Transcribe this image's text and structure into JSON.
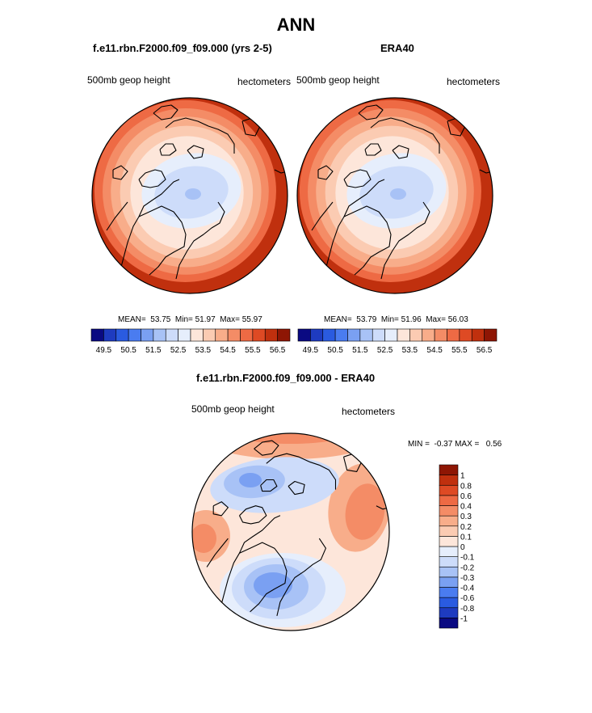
{
  "title": "ANN",
  "chart_data": [
    {
      "type": "heatmap",
      "projection": "north polar stereographic",
      "title": "f.e11.rbn.F2000.f09_f09.000 (yrs 2-5)",
      "left_label": "500mb geop height",
      "right_label": "hectometers",
      "stats": {
        "mean_label": "MEAN=",
        "mean": "53.75",
        "min_label": "Min=",
        "min": "51.97",
        "max_label": "Max=",
        "max": "55.97"
      },
      "colorbar": {
        "orientation": "horizontal",
        "levels": [
          49.5,
          50,
          50.5,
          51,
          51.5,
          52,
          52.5,
          53,
          53.5,
          54,
          54.5,
          55,
          55.5,
          56,
          56.5
        ],
        "tick_labels": [
          "49.5",
          "50.5",
          "51.5",
          "52.5",
          "53.5",
          "54.5",
          "55.5",
          "56.5"
        ],
        "colors": [
          "#0a0a82",
          "#1e3bc0",
          "#2a5be0",
          "#4a7cf0",
          "#7aa0f2",
          "#a8c2f6",
          "#cddcfa",
          "#e6eefc",
          "#fde6da",
          "#fbcbb2",
          "#f8ad8a",
          "#f48c66",
          "#ee6a44",
          "#de4a24",
          "#c0300e",
          "#8e1604"
        ]
      }
    },
    {
      "type": "heatmap",
      "projection": "north polar stereographic",
      "title": "ERA40",
      "left_label": "500mb geop height",
      "right_label": "hectometers",
      "stats": {
        "mean_label": "MEAN=",
        "mean": "53.79",
        "min_label": "Min=",
        "min": "51.96",
        "max_label": "Max=",
        "max": "56.03"
      },
      "colorbar": {
        "orientation": "horizontal",
        "levels": [
          49.5,
          50,
          50.5,
          51,
          51.5,
          52,
          52.5,
          53,
          53.5,
          54,
          54.5,
          55,
          55.5,
          56,
          56.5
        ],
        "tick_labels": [
          "49.5",
          "50.5",
          "51.5",
          "52.5",
          "53.5",
          "54.5",
          "55.5",
          "56.5"
        ],
        "colors": [
          "#0a0a82",
          "#1e3bc0",
          "#2a5be0",
          "#4a7cf0",
          "#7aa0f2",
          "#a8c2f6",
          "#cddcfa",
          "#e6eefc",
          "#fde6da",
          "#fbcbb2",
          "#f8ad8a",
          "#f48c66",
          "#ee6a44",
          "#de4a24",
          "#c0300e",
          "#8e1604"
        ]
      }
    },
    {
      "type": "heatmap",
      "projection": "north polar stereographic",
      "title": "f.e11.rbn.F2000.f09_f09.000 - ERA40",
      "left_label": "500mb geop height",
      "right_label": "hectometers",
      "stats": {
        "min_label": "MIN =",
        "min": "-0.37",
        "max_label": "MAX =",
        "max": "0.56"
      },
      "colorbar": {
        "orientation": "vertical",
        "levels": [
          -1,
          -0.8,
          -0.6,
          -0.4,
          -0.3,
          -0.2,
          -0.1,
          0,
          0.1,
          0.2,
          0.3,
          0.4,
          0.6,
          0.8,
          1
        ],
        "tick_labels": [
          "-1",
          "-0.8",
          "-0.6",
          "-0.4",
          "-0.3",
          "-0.2",
          "-0.1",
          "0",
          "0.1",
          "0.2",
          "0.3",
          "0.4",
          "0.6",
          "0.8",
          "1"
        ],
        "colors": [
          "#0a0a82",
          "#1e3bc0",
          "#2a5be0",
          "#4a7cf0",
          "#7aa0f2",
          "#a8c2f6",
          "#cddcfa",
          "#e6eefc",
          "#fde6da",
          "#fbcbb2",
          "#f8ad8a",
          "#f48c66",
          "#ee6a44",
          "#de4a24",
          "#c0300e",
          "#8e1604"
        ]
      }
    }
  ]
}
